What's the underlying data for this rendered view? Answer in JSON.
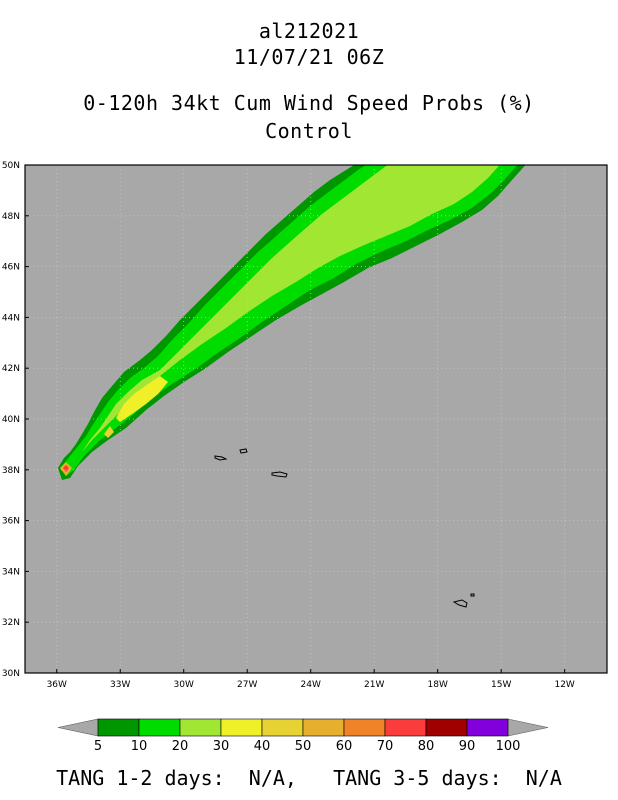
{
  "header": {
    "storm_id": "al212021",
    "datetime": "11/07/21 06Z",
    "product": "0-120h 34kt Cum Wind Speed Probs (%)",
    "run": "Control"
  },
  "map": {
    "background_color": "#a8a8a8",
    "lat_range": [
      30,
      50
    ],
    "lon_range": [
      -37.5,
      -10
    ],
    "lat_labels": [
      {
        "v": 30,
        "label": "30N"
      },
      {
        "v": 32,
        "label": "32N"
      },
      {
        "v": 34,
        "label": "34N"
      },
      {
        "v": 36,
        "label": "36N"
      },
      {
        "v": 38,
        "label": "38N"
      },
      {
        "v": 40,
        "label": "40N"
      },
      {
        "v": 42,
        "label": "42N"
      },
      {
        "v": 44,
        "label": "44N"
      },
      {
        "v": 46,
        "label": "46N"
      },
      {
        "v": 48,
        "label": "48N"
      },
      {
        "v": 50,
        "label": "50N"
      }
    ],
    "lon_labels": [
      {
        "v": -36,
        "label": "36W"
      },
      {
        "v": -33,
        "label": "33W"
      },
      {
        "v": -30,
        "label": "30W"
      },
      {
        "v": -27,
        "label": "27W"
      },
      {
        "v": -24,
        "label": "24W"
      },
      {
        "v": -21,
        "label": "21W"
      },
      {
        "v": -18,
        "label": "18W"
      },
      {
        "v": -15,
        "label": "15W"
      },
      {
        "v": -12,
        "label": "12W"
      }
    ],
    "grid_style": "dotted"
  },
  "colorbar": {
    "levels": [
      "5",
      "10",
      "20",
      "30",
      "40",
      "50",
      "60",
      "70",
      "80",
      "90",
      "100"
    ],
    "colors": [
      "#009600",
      "#00dc00",
      "#a0e632",
      "#f0f028",
      "#e6d232",
      "#e6af2d",
      "#f08228",
      "#fa3c3c",
      "#a00000",
      "#8200dc"
    ],
    "extension_color": "#a8a8a8"
  },
  "footer": {
    "tang_12_label": "TANG 1-2 days:",
    "tang_12_value": "N/A,",
    "tang_35_label": "TANG 3-5 days:",
    "tang_35_value": "N/A"
  }
}
